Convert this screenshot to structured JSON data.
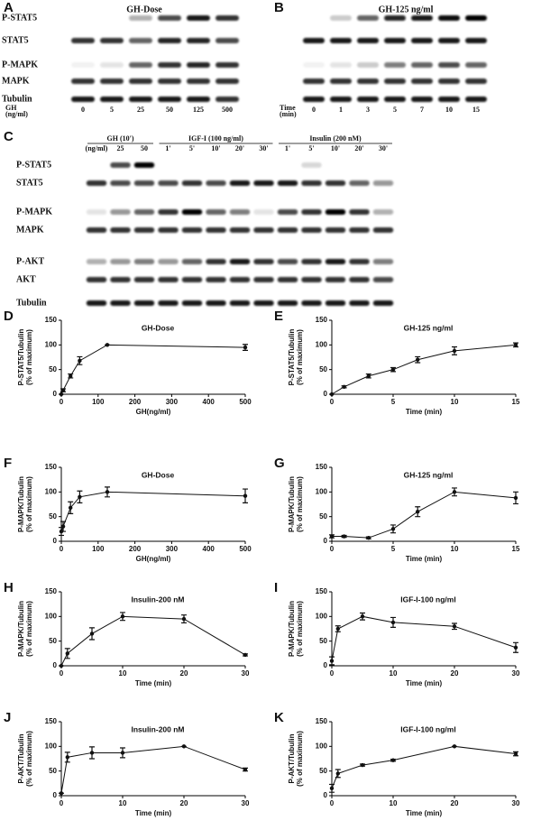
{
  "blots": [
    {
      "panel": "A",
      "title": "GH-Dose",
      "rows": [
        "P-STAT5",
        "STAT5",
        "P-MAPK",
        "MAPK",
        "Tubulin"
      ],
      "lane_title": [
        "GH",
        "(ng/ml)"
      ],
      "lanes": [
        "0",
        "5",
        "25",
        "50",
        "125",
        "500"
      ]
    },
    {
      "panel": "B",
      "title": "GH-125 ng/ml",
      "rows": [],
      "lane_title": [
        "Time",
        "(min)"
      ],
      "lanes": [
        "0",
        "1",
        "3",
        "5",
        "7",
        "10",
        "15"
      ]
    },
    {
      "panel": "C",
      "rows": [
        "P-STAT5",
        "STAT5",
        "P-MAPK",
        "MAPK",
        "P-AKT",
        "AKT",
        "Tubulin"
      ],
      "groups": [
        {
          "title": "GH (10')",
          "lanes": [
            "(ng/ml)",
            "25",
            "50"
          ]
        },
        {
          "title": "IGF-I (100 ng/ml)",
          "lanes": [
            "1'",
            "5'",
            "10'",
            "20'",
            "30'"
          ]
        },
        {
          "title": "Insulin (200 nM)",
          "lanes": [
            "1'",
            "5'",
            "10'",
            "20'",
            "30'"
          ]
        }
      ]
    }
  ],
  "chart_data": [
    {
      "type": "line",
      "panel": "D",
      "title": "GH-Dose",
      "xlabel": "GH(ng/ml)",
      "ylabel": [
        "P-STAT5/Tubulin",
        "(% of maximum)"
      ],
      "x": [
        0,
        5,
        25,
        50,
        125,
        500
      ],
      "values": [
        0,
        8,
        37,
        68,
        100,
        95
      ],
      "errors": [
        0,
        3,
        4,
        8,
        0,
        6
      ],
      "xlim": [
        0,
        500
      ],
      "xticks": [
        0,
        100,
        200,
        300,
        400,
        500
      ],
      "ylim": [
        0,
        150
      ],
      "yticks": [
        0,
        50,
        100,
        150
      ],
      "color": "#111111"
    },
    {
      "type": "line",
      "panel": "E",
      "title": "GH-125 ng/ml",
      "xlabel": "Time (min)",
      "ylabel": [
        "P-STAT5/Tubulin",
        "(% of maximum)"
      ],
      "x": [
        0,
        1,
        3,
        5,
        7,
        10,
        15
      ],
      "values": [
        0,
        15,
        37,
        50,
        70,
        88,
        100
      ],
      "errors": [
        0,
        2,
        4,
        4,
        6,
        8,
        4
      ],
      "xlim": [
        0,
        15
      ],
      "xticks": [
        0,
        5,
        10,
        15
      ],
      "ylim": [
        0,
        150
      ],
      "yticks": [
        0,
        50,
        100,
        150
      ],
      "color": "#111111"
    },
    {
      "type": "line",
      "panel": "F",
      "title": "GH-Dose",
      "xlabel": "GH(ng/ml)",
      "ylabel": [
        "P-MAPK/Tubulin",
        "(% of maximum)"
      ],
      "x": [
        0,
        5,
        25,
        50,
        125,
        500
      ],
      "values": [
        20,
        30,
        68,
        90,
        100,
        92
      ],
      "errors": [
        8,
        10,
        12,
        12,
        10,
        14
      ],
      "xlim": [
        0,
        500
      ],
      "xticks": [
        0,
        100,
        200,
        300,
        400,
        500
      ],
      "ylim": [
        0,
        150
      ],
      "yticks": [
        0,
        50,
        100,
        150
      ],
      "color": "#111111"
    },
    {
      "type": "line",
      "panel": "G",
      "title": "GH-125 ng/ml",
      "xlabel": "Time (min)",
      "ylabel": [
        "P-MAPK/Tubulin",
        "(% of maximum)"
      ],
      "x": [
        0,
        1,
        3,
        5,
        7,
        10,
        15
      ],
      "values": [
        10,
        10,
        7,
        25,
        60,
        100,
        88
      ],
      "errors": [
        3,
        2,
        2,
        8,
        10,
        8,
        12
      ],
      "xlim": [
        0,
        15
      ],
      "xticks": [
        0,
        5,
        10,
        15
      ],
      "ylim": [
        0,
        150
      ],
      "yticks": [
        0,
        50,
        100,
        150
      ],
      "color": "#111111"
    },
    {
      "type": "line",
      "panel": "H",
      "title": "Insulin-200 nM",
      "xlabel": "Time (min)",
      "ylabel": [
        "P-MAPK/Tubulin",
        "(% of maximum)"
      ],
      "x": [
        0,
        1,
        5,
        10,
        20,
        30
      ],
      "values": [
        0,
        25,
        65,
        100,
        95,
        22
      ],
      "errors": [
        0,
        10,
        12,
        8,
        8,
        2
      ],
      "xlim": [
        0,
        30
      ],
      "xticks": [
        0,
        10,
        20,
        30
      ],
      "ylim": [
        0,
        150
      ],
      "yticks": [
        0,
        50,
        100,
        150
      ],
      "color": "#111111"
    },
    {
      "type": "line",
      "panel": "I",
      "title": "IGF-I-100 ng/ml",
      "xlabel": "Time (min)",
      "ylabel": [
        "P-MAPK/Tubulin",
        "(% of maximum)"
      ],
      "x": [
        0,
        1,
        5,
        10,
        20,
        30
      ],
      "values": [
        10,
        75,
        100,
        88,
        80,
        37
      ],
      "errors": [
        8,
        6,
        7,
        10,
        6,
        10
      ],
      "xlim": [
        0,
        30
      ],
      "xticks": [
        0,
        10,
        20,
        30
      ],
      "ylim": [
        0,
        150
      ],
      "yticks": [
        0,
        50,
        100,
        150
      ],
      "color": "#111111"
    },
    {
      "type": "line",
      "panel": "J",
      "title": "Insulin-200 nM",
      "xlabel": "Time (min)",
      "ylabel": [
        "P-AKT/Tubulin",
        "(% of maximum)"
      ],
      "x": [
        0,
        1,
        5,
        10,
        20,
        30
      ],
      "values": [
        5,
        78,
        87,
        87,
        100,
        53
      ],
      "errors": [
        0,
        10,
        12,
        10,
        0,
        3
      ],
      "xlim": [
        0,
        30
      ],
      "xticks": [
        0,
        10,
        20,
        30
      ],
      "ylim": [
        0,
        150
      ],
      "yticks": [
        0,
        50,
        100,
        150
      ],
      "color": "#111111"
    },
    {
      "type": "line",
      "panel": "K",
      "title": "IGF-I-100 ng/ml",
      "xlabel": "Time (min)",
      "ylabel": [
        "P-AKT/Tubulin",
        "(% of maximum)"
      ],
      "x": [
        0,
        1,
        5,
        10,
        20,
        30
      ],
      "values": [
        15,
        45,
        62,
        72,
        100,
        85
      ],
      "errors": [
        8,
        8,
        2,
        2,
        0,
        4
      ],
      "xlim": [
        0,
        30
      ],
      "xticks": [
        0,
        10,
        20,
        30
      ],
      "ylim": [
        0,
        150
      ],
      "yticks": [
        0,
        50,
        100,
        150
      ],
      "color": "#111111"
    }
  ]
}
